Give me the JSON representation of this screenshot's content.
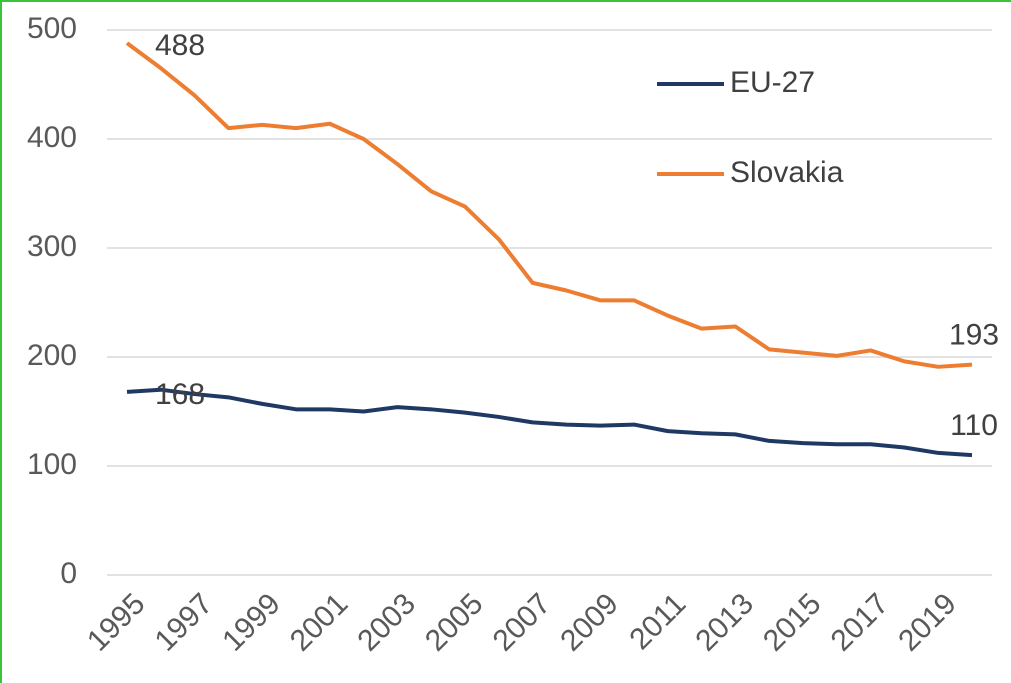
{
  "chart_data": {
    "type": "line",
    "categories": [
      "1995",
      null,
      "1997",
      null,
      "1999",
      null,
      "2001",
      null,
      "2003",
      null,
      "2005",
      null,
      "2007",
      null,
      "2009",
      null,
      "2011",
      null,
      "2013",
      null,
      "2015",
      null,
      "2017",
      null,
      "2019",
      null
    ],
    "series": [
      {
        "name": "EU-27",
        "color": "#1f3864",
        "values": [
          168,
          170,
          166,
          163,
          157,
          152,
          152,
          150,
          154,
          152,
          149,
          145,
          140,
          138,
          137,
          138,
          132,
          130,
          129,
          123,
          121,
          120,
          120,
          117,
          112,
          110
        ]
      },
      {
        "name": "Slovakia",
        "color": "#ed7d31",
        "values": [
          488,
          465,
          440,
          410,
          413,
          410,
          414,
          400,
          377,
          352,
          338,
          308,
          268,
          261,
          252,
          252,
          238,
          226,
          228,
          207,
          204,
          201,
          206,
          196,
          191,
          193
        ]
      }
    ],
    "ylim": [
      0,
      500
    ],
    "yticks": [
      0,
      100,
      200,
      300,
      400,
      500
    ],
    "grid": true,
    "legend": "top-right"
  }
}
